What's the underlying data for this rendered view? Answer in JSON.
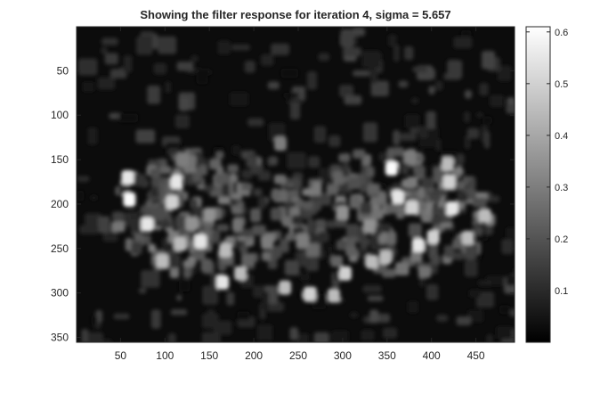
{
  "chart_data": {
    "type": "heatmap",
    "title": "Showing the filter response for iteration 4, sigma = 5.657",
    "xlabel": "",
    "ylabel": "",
    "image_size": {
      "width": 493,
      "height": 355
    },
    "x_ticks": [
      50,
      100,
      150,
      200,
      250,
      300,
      350,
      400,
      450
    ],
    "y_ticks": [
      50,
      100,
      150,
      200,
      250,
      300,
      350
    ],
    "xlim": [
      0.5,
      493.5
    ],
    "ylim": [
      0.5,
      355.5
    ],
    "y_direction": "reverse",
    "colormap": "gray",
    "colorbar": {
      "ticks": [
        0.1,
        0.2,
        0.3,
        0.4,
        0.5,
        0.6
      ],
      "tick_labels": [
        "0.1",
        "0.2",
        "0.3",
        "0.4",
        "0.5",
        "0.6"
      ],
      "clim": [
        0.0,
        0.61
      ],
      "location": "right"
    },
    "bright_spots": [
      {
        "x": 58,
        "y": 170,
        "v": 0.55
      },
      {
        "x": 60,
        "y": 195,
        "v": 0.6
      },
      {
        "x": 80,
        "y": 223,
        "v": 0.55
      },
      {
        "x": 97,
        "y": 264,
        "v": 0.45
      },
      {
        "x": 108,
        "y": 198,
        "v": 0.5
      },
      {
        "x": 113,
        "y": 175,
        "v": 0.55
      },
      {
        "x": 117,
        "y": 245,
        "v": 0.45
      },
      {
        "x": 140,
        "y": 242,
        "v": 0.55
      },
      {
        "x": 165,
        "y": 288,
        "v": 0.55
      },
      {
        "x": 185,
        "y": 278,
        "v": 0.45
      },
      {
        "x": 168,
        "y": 252,
        "v": 0.45
      },
      {
        "x": 130,
        "y": 222,
        "v": 0.35
      },
      {
        "x": 235,
        "y": 294,
        "v": 0.45
      },
      {
        "x": 263,
        "y": 301,
        "v": 0.5
      },
      {
        "x": 290,
        "y": 303,
        "v": 0.45
      },
      {
        "x": 303,
        "y": 278,
        "v": 0.5
      },
      {
        "x": 333,
        "y": 265,
        "v": 0.45
      },
      {
        "x": 348,
        "y": 260,
        "v": 0.45
      },
      {
        "x": 362,
        "y": 192,
        "v": 0.55
      },
      {
        "x": 355,
        "y": 160,
        "v": 0.6
      },
      {
        "x": 378,
        "y": 204,
        "v": 0.5
      },
      {
        "x": 385,
        "y": 246,
        "v": 0.55
      },
      {
        "x": 402,
        "y": 237,
        "v": 0.5
      },
      {
        "x": 420,
        "y": 175,
        "v": 0.5
      },
      {
        "x": 423,
        "y": 205,
        "v": 0.55
      },
      {
        "x": 441,
        "y": 238,
        "v": 0.45
      },
      {
        "x": 418,
        "y": 155,
        "v": 0.45
      },
      {
        "x": 460,
        "y": 213,
        "v": 0.45
      },
      {
        "x": 215,
        "y": 243,
        "v": 0.3
      },
      {
        "x": 255,
        "y": 241,
        "v": 0.3
      },
      {
        "x": 120,
        "y": 150,
        "v": 0.3
      },
      {
        "x": 376,
        "y": 147,
        "v": 0.3
      },
      {
        "x": 230,
        "y": 132,
        "v": 0.3
      },
      {
        "x": 300,
        "y": 210,
        "v": 0.35
      },
      {
        "x": 150,
        "y": 212,
        "v": 0.35
      },
      {
        "x": 330,
        "y": 225,
        "v": 0.35
      }
    ]
  }
}
